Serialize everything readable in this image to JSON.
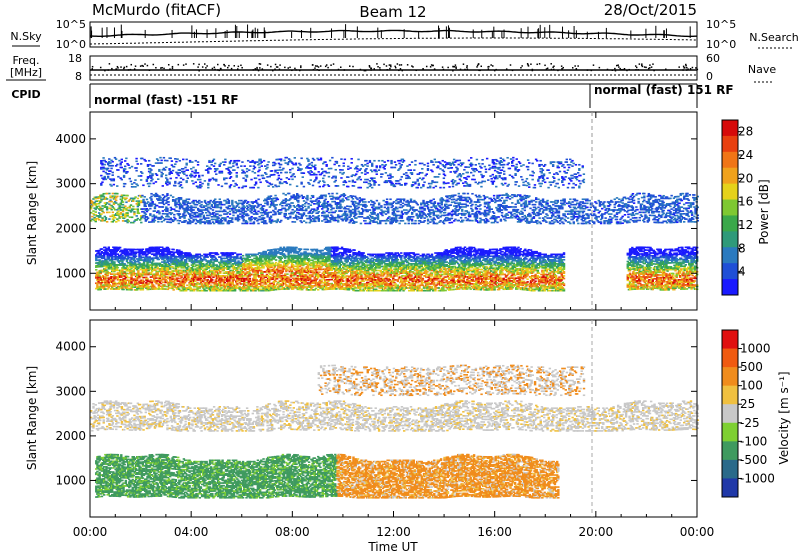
{
  "header": {
    "station": "McMurdo (fitACF)",
    "beam": "Beam 12",
    "date": "28/Oct/2015"
  },
  "summary_panels": {
    "nsky_label": "N.Sky",
    "nsky_ticks": [
      "10^5",
      "10^0"
    ],
    "nsearch_label": "N.Search",
    "nsearch_ticks_right": [
      "10^5",
      "10^0"
    ],
    "freq_label_line1": "Freq.",
    "freq_label_line2": "[MHz]",
    "freq_ticks": [
      "18",
      "8"
    ],
    "nave_label": "Nave",
    "nave_ticks_right": [
      "60",
      "0"
    ],
    "cpid_label": "CPID",
    "mode_left": "normal (fast) -151 RF",
    "mode_right": "normal (fast) 151 RF"
  },
  "chart_data": [
    {
      "type": "heatmap",
      "title": "Power",
      "xlabel": "",
      "ylabel": "Slant Range [km]",
      "x_tick_labels": [
        "00:00",
        "04:00",
        "08:00",
        "12:00",
        "16:00",
        "20:00",
        "00:00"
      ],
      "x_range_hours": [
        0,
        24
      ],
      "y_ticks": [
        1000,
        2000,
        3000,
        4000
      ],
      "ylim": [
        180,
        4600
      ],
      "colorbar": {
        "label": "Power [dB]",
        "ticks": [
          "4",
          "8",
          "12",
          "16",
          "20",
          "24",
          "28"
        ],
        "range": [
          0,
          30
        ],
        "colors": [
          "#1a1aff",
          "#1f4fd6",
          "#2a7abf",
          "#2f9a7a",
          "#3aa84a",
          "#7ec832",
          "#e5d21a",
          "#f0a21c",
          "#f07516",
          "#e8400f",
          "#d60a0a"
        ]
      },
      "echo_bands": [
        {
          "name": "E/near-range echoes",
          "hours": [
            0.2,
            24
          ],
          "range_km": [
            600,
            1500
          ],
          "peak_power_db": 30
        },
        {
          "name": "mid-range echoes",
          "hours": [
            0,
            24
          ],
          "range_km": [
            2100,
            2700
          ],
          "peak_power_db": 20
        },
        {
          "name": "far-range echoes",
          "hours": [
            0.4,
            19.5
          ],
          "range_km": [
            2900,
            3550
          ],
          "peak_power_db": 8
        }
      ]
    },
    {
      "type": "heatmap",
      "title": "Velocity",
      "xlabel": "Time UT",
      "ylabel": "Slant Range [km]",
      "x_tick_labels": [
        "00:00",
        "04:00",
        "08:00",
        "12:00",
        "16:00",
        "20:00",
        "00:00"
      ],
      "x_range_hours": [
        0,
        24
      ],
      "y_ticks": [
        1000,
        2000,
        3000,
        4000
      ],
      "ylim": [
        180,
        4600
      ],
      "colorbar": {
        "label": "Velocity [m s⁻¹]",
        "ticks": [
          "1000",
          "500",
          "100",
          "25",
          "-25",
          "-100",
          "-500",
          "-1000"
        ],
        "colors": [
          "#2038a8",
          "#2a6a8a",
          "#3f9a5f",
          "#7ed032",
          "#c8c8c8",
          "#f0c040",
          "#f08c1c",
          "#f05a10",
          "#e01010"
        ]
      },
      "echo_bands": [
        {
          "name": "near-range",
          "hours_toward": [
            0.2,
            9.7
          ],
          "hours_away": [
            10,
            18.5
          ],
          "range_km": [
            600,
            1500
          ]
        },
        {
          "name": "ground scatter",
          "hours": [
            0,
            24
          ],
          "range_km": [
            2100,
            2700
          ],
          "velocity_ms": 0
        },
        {
          "name": "far-range",
          "hours": [
            9,
            19.5
          ],
          "range_km": [
            2900,
            3550
          ]
        }
      ]
    }
  ]
}
